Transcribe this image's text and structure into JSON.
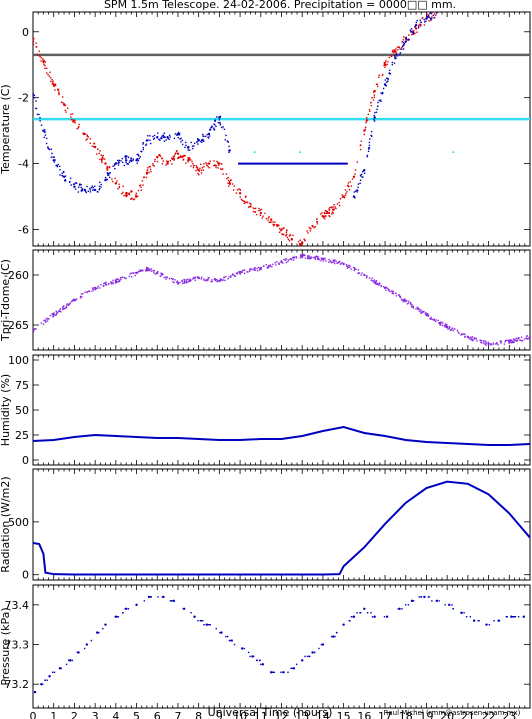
{
  "title": "SPM 1.5m Telescope. 24-02-2006. Precipitation = 0000□□ mm.",
  "xlabel": "Universal Time (hours)",
  "credit": "Raul Michel (rmm@astrosen.unam.mx)",
  "colors": {
    "blue": "#0000c0",
    "red": "#e00000",
    "purple": "#8a2be2",
    "cyan": "#33ddee",
    "gray": "#606060",
    "frame": "#000000"
  },
  "chart_data": [
    {
      "type": "scatter",
      "ylabel": "Temperature (C)",
      "xlim": [
        0,
        24
      ],
      "ylim": [
        -6.5,
        0.6
      ],
      "yticks": [
        0,
        -2,
        -4,
        -6
      ],
      "xticks": [
        0,
        1,
        2,
        3,
        4,
        5,
        6,
        7,
        8,
        9,
        10,
        11,
        12,
        13,
        14,
        15,
        16,
        17,
        18,
        19,
        20,
        21,
        22,
        23
      ],
      "hlines": [
        {
          "y": -0.7,
          "color": "gray"
        },
        {
          "y": -2.65,
          "color": "cyan"
        }
      ],
      "series": [
        {
          "color": "red",
          "x": [
            0,
            0.5,
            1,
            1.5,
            2,
            2.5,
            3,
            3.5,
            4,
            4.5,
            5,
            5.5,
            6,
            6.5,
            7,
            7.5,
            8,
            8.5,
            9,
            9.5,
            10,
            10.5,
            11,
            11.5,
            12,
            12.5,
            13,
            13.5,
            14,
            14.5,
            15,
            15.5,
            16,
            16.5,
            17,
            17.5,
            18,
            18.5,
            19,
            19.5
          ],
          "values": [
            -0.3,
            -0.9,
            -1.6,
            -2.2,
            -2.7,
            -3.1,
            -3.5,
            -4.0,
            -4.6,
            -4.9,
            -5.0,
            -4.3,
            -3.8,
            -4.0,
            -3.7,
            -3.9,
            -4.2,
            -4.0,
            -4.0,
            -4.6,
            -4.9,
            -5.3,
            -5.5,
            -5.7,
            -6.0,
            -6.3,
            -6.4,
            -5.9,
            -5.6,
            -5.4,
            -5.0,
            -4.4,
            -3.0,
            -1.8,
            -1.0,
            -0.6,
            -0.2,
            0.1,
            0.4,
            0.6
          ]
        },
        {
          "color": "blue",
          "x": [
            0,
            0.5,
            1,
            1.5,
            2,
            2.5,
            3,
            3.5,
            4,
            4.5,
            5,
            5.5,
            6,
            6.5,
            7,
            7.5,
            8,
            8.5,
            9,
            9.5
          ],
          "values": [
            -1.9,
            -3.0,
            -3.9,
            -4.4,
            -4.7,
            -4.8,
            -4.8,
            -4.5,
            -4.0,
            -3.9,
            -3.9,
            -3.3,
            -3.2,
            -3.2,
            -3.1,
            -3.5,
            -3.3,
            -3.1,
            -2.6,
            -3.6
          ]
        },
        {
          "color": "blue",
          "x": [
            9.9,
            15.2
          ],
          "values": [
            -4.0,
            -4.0
          ]
        },
        {
          "color": "blue",
          "x": [
            15.5,
            16,
            16.5,
            17,
            17.5,
            18,
            18.5,
            19,
            19.5
          ],
          "values": [
            -5.0,
            -4.2,
            -2.6,
            -1.6,
            -0.8,
            -0.3,
            0.2,
            0.4,
            0.6
          ]
        },
        {
          "color": "cyan",
          "x": [
            10.7,
            12.9,
            20.3
          ],
          "values": [
            -3.65,
            -3.65,
            -3.65
          ]
        }
      ]
    },
    {
      "type": "scatter",
      "ylabel": "Tpri-Tdome (C)",
      "xlim": [
        0,
        24
      ],
      "ylim": [
        -267.5,
        -257.5
      ],
      "yticks": [
        -260,
        -265
      ],
      "series": [
        {
          "color": "purple",
          "x": [
            0,
            1,
            2,
            3,
            4,
            5,
            5.5,
            6,
            7,
            8,
            9,
            10,
            11,
            12,
            13,
            14,
            15,
            16,
            17,
            18,
            19,
            20,
            21,
            22,
            23,
            24
          ],
          "values": [
            -265.5,
            -264.0,
            -262.5,
            -261.3,
            -260.6,
            -259.8,
            -259.4,
            -259.8,
            -260.8,
            -260.3,
            -260.6,
            -259.8,
            -259.3,
            -258.7,
            -258.1,
            -258.4,
            -258.9,
            -260.0,
            -261.3,
            -262.6,
            -264.0,
            -265.2,
            -266.2,
            -266.9,
            -266.7,
            -266.2
          ]
        }
      ]
    },
    {
      "type": "line",
      "ylabel": "Humidity (%)",
      "xlim": [
        0,
        24
      ],
      "ylim": [
        -5,
        105
      ],
      "yticks": [
        0,
        25,
        50,
        75,
        100
      ],
      "series": [
        {
          "color": "blue",
          "x": [
            0,
            1,
            2,
            3,
            4,
            5,
            6,
            7,
            8,
            9,
            10,
            11,
            12,
            13,
            14,
            15,
            16,
            17,
            18,
            19,
            20,
            21,
            22,
            23,
            24
          ],
          "values": [
            19,
            20,
            23,
            25,
            24,
            23,
            22,
            22,
            21,
            20,
            20,
            21,
            21,
            24,
            29,
            33,
            27,
            24,
            20,
            18,
            17,
            16,
            15,
            15,
            16
          ]
        }
      ]
    },
    {
      "type": "line",
      "ylabel": "Radiation (W/m2)",
      "xlim": [
        0,
        24
      ],
      "ylim": [
        -50,
        1000
      ],
      "yticks": [
        0,
        500
      ],
      "series": [
        {
          "color": "blue",
          "x": [
            0,
            0.3,
            0.5,
            0.6,
            1,
            2,
            5,
            8,
            11,
            14,
            14.8,
            15,
            16,
            17,
            18,
            19,
            20,
            21,
            22,
            23,
            24
          ],
          "values": [
            300,
            290,
            200,
            20,
            5,
            2,
            2,
            2,
            2,
            2,
            5,
            80,
            260,
            480,
            680,
            820,
            880,
            860,
            760,
            580,
            350
          ]
        }
      ]
    },
    {
      "type": "scatter",
      "ylabel": "Pressure (kPa)",
      "xlim": [
        0,
        24
      ],
      "ylim": [
        73.14,
        73.45
      ],
      "yticks": [
        73.2,
        73.3,
        73.4
      ],
      "series": [
        {
          "color": "blue",
          "x": [
            0.1,
            0.4,
            0.8,
            1.3,
            1.8,
            2.2,
            2.6,
            3.1,
            3.5,
            4.0,
            4.5,
            5.0,
            5.6,
            6.3,
            6.8,
            7.3,
            7.8,
            8.4,
            9.1,
            9.6,
            10.1,
            10.6,
            11.1,
            11.5,
            12.1,
            12.6,
            13.0,
            13.5,
            14.0,
            14.5,
            15.0,
            15.5,
            16.0,
            16.5,
            17.1,
            17.7,
            18.3,
            18.9,
            19.5,
            20.1,
            20.7,
            21.3,
            21.9,
            22.5,
            23.1,
            23.7
          ],
          "values": [
            73.18,
            73.2,
            73.22,
            73.24,
            73.26,
            73.28,
            73.3,
            73.33,
            73.35,
            73.37,
            73.39,
            73.4,
            73.42,
            73.42,
            73.41,
            73.39,
            73.37,
            73.35,
            73.33,
            73.31,
            73.29,
            73.27,
            73.25,
            73.23,
            73.23,
            73.24,
            73.26,
            73.28,
            73.3,
            73.32,
            73.35,
            73.37,
            73.39,
            73.37,
            73.37,
            73.39,
            73.41,
            73.42,
            73.41,
            73.4,
            73.38,
            73.36,
            73.35,
            73.36,
            73.37,
            73.37
          ]
        }
      ]
    }
  ]
}
